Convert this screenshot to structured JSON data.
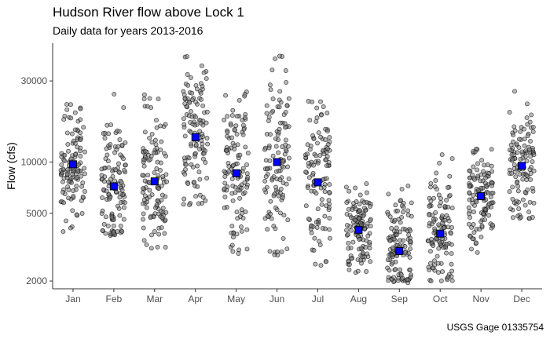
{
  "chart_data": {
    "type": "scatter",
    "title": "Hudson River flow above Lock 1",
    "subtitle": "Daily data for years 2013-2016",
    "caption": "USGS Gage 01335754",
    "xlabel": "",
    "ylabel": "Flow (cfs)",
    "y_scale": "log",
    "ylim": [
      1800,
      50000
    ],
    "y_ticks": [
      2000,
      5000,
      10000,
      30000
    ],
    "y_tick_labels": [
      "2000",
      "5000",
      "10000",
      "30000"
    ],
    "categories": [
      "Jan",
      "Feb",
      "Mar",
      "Apr",
      "May",
      "Jun",
      "Jul",
      "Aug",
      "Sep",
      "Oct",
      "Nov",
      "Dec"
    ],
    "monthly_mean": [
      9700,
      7200,
      7700,
      14000,
      8600,
      10000,
      7600,
      4000,
      3000,
      3800,
      6300,
      9500
    ],
    "daily_spread": [
      {
        "min": 3800,
        "max": 22000
      },
      {
        "min": 3700,
        "max": 29000
      },
      {
        "min": 3100,
        "max": 25000
      },
      {
        "min": 5500,
        "max": 44000
      },
      {
        "min": 2900,
        "max": 26000
      },
      {
        "min": 2800,
        "max": 43000
      },
      {
        "min": 2400,
        "max": 23000
      },
      {
        "min": 2200,
        "max": 7500
      },
      {
        "min": 1950,
        "max": 9500
      },
      {
        "min": 1980,
        "max": 13000
      },
      {
        "min": 2900,
        "max": 12000
      },
      {
        "min": 4600,
        "max": 27000
      }
    ],
    "series": [
      {
        "values_per_month": 120,
        "kind": "daily values (jittered)"
      },
      {
        "kind": "monthly mean"
      }
    ],
    "grid": false,
    "legend": "none"
  },
  "colors": {
    "point_fill": "#808080",
    "point_stroke": "#000000",
    "mean_fill": "#0000ff",
    "axis": "#333333"
  }
}
